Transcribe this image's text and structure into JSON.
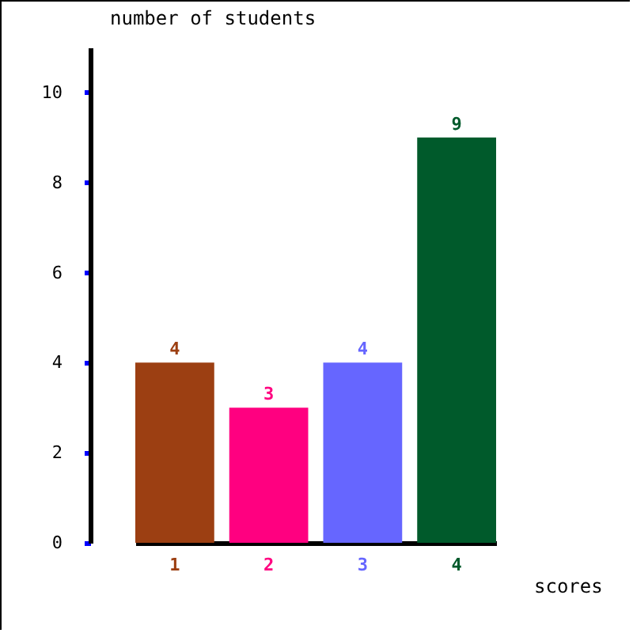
{
  "chart_data": {
    "type": "bar",
    "ylabel": "number of students",
    "xlabel": "scores",
    "categories": [
      "1",
      "2",
      "3",
      "4"
    ],
    "values": [
      4,
      3,
      4,
      9
    ],
    "colors": [
      "#9c3f12",
      "#ff0080",
      "#6666ff",
      "#005a2b"
    ],
    "ylim": [
      0,
      11
    ],
    "yticks": [
      0,
      2,
      4,
      6,
      8,
      10
    ],
    "grid": false,
    "data_labels": true
  }
}
